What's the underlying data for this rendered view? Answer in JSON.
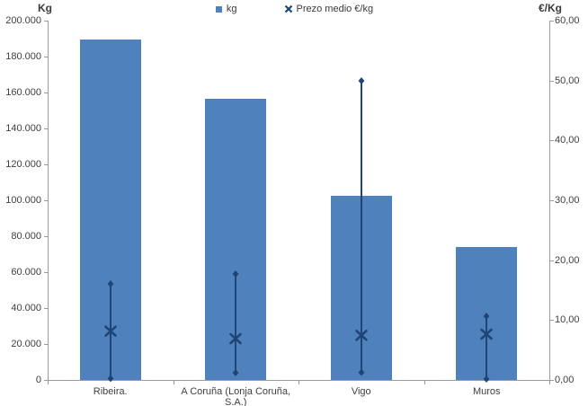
{
  "chart_data": {
    "type": "bar",
    "subtype": "column with secondary-axis price markers (high-low-mean)",
    "title": "",
    "categories": [
      "Ribeira.",
      "A Coruña (Lonja Coruña, S.A.)",
      "Vigo",
      "Muros"
    ],
    "series": [
      {
        "name": "kg",
        "type": "bar",
        "axis": "left",
        "values": [
          189500,
          156500,
          102500,
          74000
        ]
      },
      {
        "name": "Prezo medio €/kg",
        "type": "scatter",
        "marker": "x",
        "axis": "right",
        "mean": [
          8.1,
          6.9,
          7.5,
          7.7
        ],
        "high": [
          16.0,
          17.7,
          50.0,
          10.7
        ],
        "low": [
          0.2,
          1.2,
          1.3,
          0.2
        ]
      }
    ],
    "left_axis": {
      "title": "Kg",
      "min": 0,
      "max": 200000,
      "step": 20000,
      "tick_labels": [
        "0",
        "20.000",
        "40.000",
        "60.000",
        "80.000",
        "100.000",
        "120.000",
        "140.000",
        "160.000",
        "180.000",
        "200.000"
      ]
    },
    "right_axis": {
      "title": "€/Kg",
      "min": 0,
      "max": 60,
      "step": 10,
      "tick_labels": [
        "0,00",
        "10,00",
        "20,00",
        "30,00",
        "40,00",
        "50,00",
        "60,00"
      ]
    },
    "legend": {
      "position": "top-center",
      "items": [
        {
          "label": "kg",
          "marker": "square"
        },
        {
          "label": "Prezo medio €/kg",
          "marker": "x"
        }
      ]
    },
    "grid": "off",
    "colors": {
      "bar": "#4f81bd",
      "price": "#1f4577",
      "axis": "#9b9b9b",
      "text": "#404040"
    }
  }
}
